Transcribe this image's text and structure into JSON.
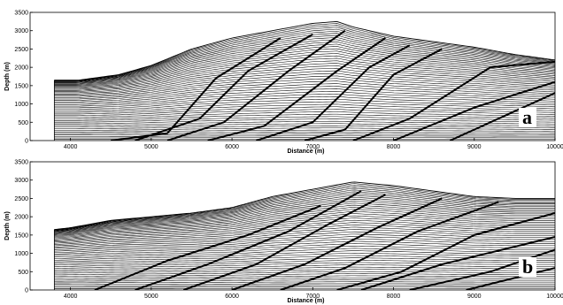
{
  "chart_data": [
    {
      "type": "line",
      "panel_label": "a",
      "xlabel": "Distance (m)",
      "ylabel": "Depth (m)",
      "xlim": [
        3500,
        10000
      ],
      "ylim": [
        0,
        3500
      ],
      "xticks": [
        4000,
        5000,
        6000,
        7000,
        8000,
        9000,
        10000
      ],
      "xtick_labels": [
        "4000",
        "5000",
        "6000",
        "7000",
        "8000",
        "9000",
        "10000"
      ],
      "yticks": [
        0,
        500,
        1000,
        1500,
        2000,
        2500,
        3000,
        3500
      ],
      "ytick_labels": [
        "0",
        "500",
        "1000",
        "1500",
        "2000",
        "2500",
        "3000",
        "3500"
      ],
      "surface": {
        "x": [
          3800,
          4100,
          4600,
          5000,
          5500,
          6000,
          6500,
          7000,
          7300,
          7500,
          8000,
          8500,
          9000,
          9500,
          10000
        ],
        "y": [
          1650,
          1650,
          1800,
          2050,
          2500,
          2800,
          3000,
          3200,
          3250,
          3100,
          2850,
          2700,
          2550,
          2350,
          2200
        ]
      },
      "layer_count": 52,
      "faults": [
        {
          "x": [
            4500,
            5200,
            5800,
            6600
          ],
          "y": [
            0,
            200,
            1700,
            2800
          ]
        },
        {
          "x": [
            4800,
            5600,
            6200,
            7000
          ],
          "y": [
            0,
            600,
            1900,
            2900
          ]
        },
        {
          "x": [
            5200,
            5900,
            6700,
            7400
          ],
          "y": [
            0,
            500,
            1900,
            3000
          ]
        },
        {
          "x": [
            5700,
            6400,
            7300,
            7900
          ],
          "y": [
            0,
            400,
            1900,
            2800
          ]
        },
        {
          "x": [
            6300,
            7000,
            7700,
            8200
          ],
          "y": [
            0,
            500,
            2000,
            2600
          ]
        },
        {
          "x": [
            6900,
            7400,
            8000,
            8600
          ],
          "y": [
            0,
            300,
            1800,
            2500
          ]
        },
        {
          "x": [
            7500,
            8200,
            9200,
            10000
          ],
          "y": [
            0,
            600,
            2000,
            2150
          ]
        },
        {
          "x": [
            8000,
            9000,
            10000
          ],
          "y": [
            0,
            900,
            1600
          ]
        },
        {
          "x": [
            8700,
            10000
          ],
          "y": [
            0,
            1300
          ]
        }
      ]
    },
    {
      "type": "line",
      "panel_label": "b",
      "xlabel": "Distance (m)",
      "ylabel": "Depth (m)",
      "xlim": [
        3500,
        10000
      ],
      "ylim": [
        0,
        3500
      ],
      "xticks": [
        4000,
        5000,
        6000,
        7000,
        8000,
        9000,
        10000
      ],
      "xtick_labels": [
        "4000",
        "5000",
        "6000",
        "7000",
        "8000",
        "9000",
        "10000"
      ],
      "yticks": [
        0,
        500,
        1000,
        1500,
        2000,
        2500,
        3000,
        3500
      ],
      "ytick_labels": [
        "0",
        "500",
        "1000",
        "1500",
        "2000",
        "2500",
        "3000",
        "3500"
      ],
      "surface": {
        "x": [
          3800,
          4000,
          4500,
          5000,
          5500,
          6000,
          6500,
          7000,
          7500,
          8000,
          8500,
          9000,
          9500,
          10000
        ],
        "y": [
          1650,
          1700,
          1900,
          2000,
          2100,
          2250,
          2550,
          2750,
          2950,
          2850,
          2700,
          2550,
          2500,
          2500
        ]
      },
      "layer_count": 52,
      "faults": [
        {
          "x": [
            4300,
            5200,
            6200,
            7100
          ],
          "y": [
            0,
            800,
            1500,
            2300
          ]
        },
        {
          "x": [
            4800,
            5700,
            6700,
            7600
          ],
          "y": [
            0,
            700,
            1600,
            2700
          ]
        },
        {
          "x": [
            5400,
            6300,
            7200,
            7900
          ],
          "y": [
            0,
            700,
            1800,
            2600
          ]
        },
        {
          "x": [
            6000,
            6900,
            7800,
            8600
          ],
          "y": [
            0,
            700,
            1700,
            2500
          ]
        },
        {
          "x": [
            6600,
            7400,
            8300,
            9300
          ],
          "y": [
            0,
            600,
            1600,
            2400
          ]
        },
        {
          "x": [
            7300,
            8100,
            9000,
            10000
          ],
          "y": [
            0,
            500,
            1500,
            2100
          ]
        },
        {
          "x": [
            7600,
            8600,
            10000
          ],
          "y": [
            0,
            700,
            1450
          ]
        },
        {
          "x": [
            8200,
            9200,
            10000
          ],
          "y": [
            0,
            500,
            1100
          ]
        },
        {
          "x": [
            8900,
            10000
          ],
          "y": [
            0,
            600
          ]
        }
      ]
    }
  ]
}
